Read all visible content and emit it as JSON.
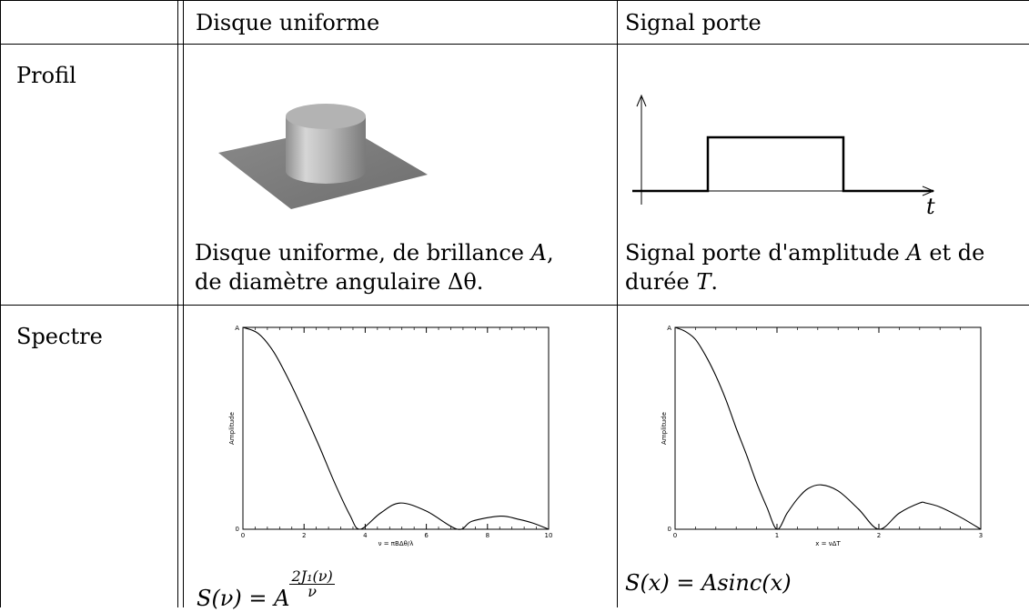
{
  "header": {
    "col1": "Disque uniforme",
    "col2": "Signal porte"
  },
  "rows": {
    "profil": {
      "label": "Profil",
      "disc_caption_line1_pre": "Disque uniforme, de brillance ",
      "disc_caption_line1_var": "A",
      "disc_caption_line1_post": ",",
      "disc_caption_line2_pre": "de diamètre angulaire ",
      "disc_caption_line2_var": "Δθ",
      "disc_caption_line2_post": ".",
      "rect_caption_line1_pre": "Signal porte d'amplitude ",
      "rect_caption_line1_var": "A",
      "rect_caption_line1_post": " et de",
      "rect_caption_line2_pre": "durée ",
      "rect_caption_line2_var": "T",
      "rect_caption_line2_post": ".",
      "rect_axis_label": "t"
    },
    "spectre": {
      "label": "Spectre",
      "disc_formula_lhs": "S(ν) = A",
      "disc_formula_num": "2J₁(ν)",
      "disc_formula_den": "ν",
      "rect_formula": "S(x) = Asinc(x)"
    }
  },
  "chart_data": [
    {
      "type": "line",
      "ylabel": "Amplitude",
      "xlabel": "ν = πBΔθ/λ",
      "xlim": [
        0,
        10
      ],
      "ylim": [
        0,
        1
      ],
      "x_ticks": [
        "0",
        "2",
        "4",
        "6",
        "8",
        "10"
      ],
      "y_ticks": [
        "0",
        "A"
      ],
      "series": [
        {
          "x": [
            0,
            0.5,
            1,
            1.5,
            2,
            2.5,
            3,
            3.5,
            3.83,
            4.5,
            5.14,
            6,
            7.02,
            7.5,
            8.42,
            9,
            9.5,
            10
          ],
          "values": [
            1.0,
            0.97,
            0.88,
            0.74,
            0.58,
            0.41,
            0.23,
            0.07,
            0.0,
            0.08,
            0.13,
            0.09,
            0.0,
            0.04,
            0.065,
            0.05,
            0.03,
            0.0
          ]
        }
      ]
    },
    {
      "type": "line",
      "ylabel": "Amplitude",
      "xlabel": "x = νΔT",
      "xlim": [
        0,
        3
      ],
      "ylim": [
        0,
        1
      ],
      "x_ticks": [
        "0",
        "1",
        "2",
        "3"
      ],
      "y_ticks": [
        "0",
        "A"
      ],
      "series": [
        {
          "x": [
            0,
            0.1,
            0.2,
            0.3,
            0.4,
            0.5,
            0.6,
            0.7,
            0.8,
            0.9,
            1.0,
            1.1,
            1.2,
            1.3,
            1.43,
            1.6,
            1.8,
            2.0,
            2.2,
            2.4,
            2.46,
            2.6,
            2.8,
            3.0
          ],
          "values": [
            1.0,
            0.98,
            0.94,
            0.86,
            0.76,
            0.64,
            0.5,
            0.37,
            0.23,
            0.11,
            0.0,
            0.08,
            0.15,
            0.2,
            0.22,
            0.19,
            0.1,
            0.0,
            0.08,
            0.13,
            0.13,
            0.11,
            0.06,
            0.0
          ]
        }
      ]
    }
  ]
}
